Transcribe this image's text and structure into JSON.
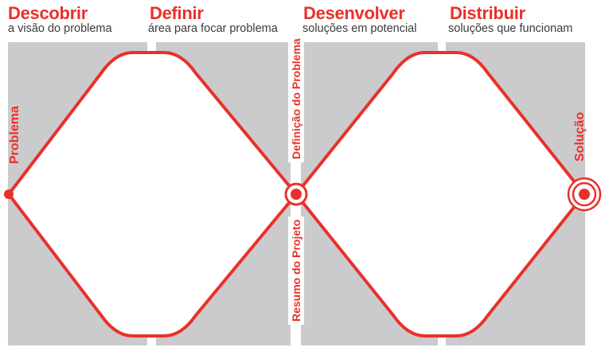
{
  "phases": [
    {
      "title": "Descobrir",
      "subtitle": "a visão do problema"
    },
    {
      "title": "Definir",
      "subtitle": "área para focar problema"
    },
    {
      "title": "Desenvolver",
      "subtitle": "soluções em potencial"
    },
    {
      "title": "Distribuir",
      "subtitle": "soluções que funcionam"
    }
  ],
  "labels": {
    "start": "Problema",
    "definition": "Definição do Problema",
    "brief": "Resumo do Projeto",
    "end": "Solução"
  },
  "colors": {
    "accent": "#e8312a",
    "panel": "#cbcbcd",
    "subtitle": "#3a3a3a"
  }
}
